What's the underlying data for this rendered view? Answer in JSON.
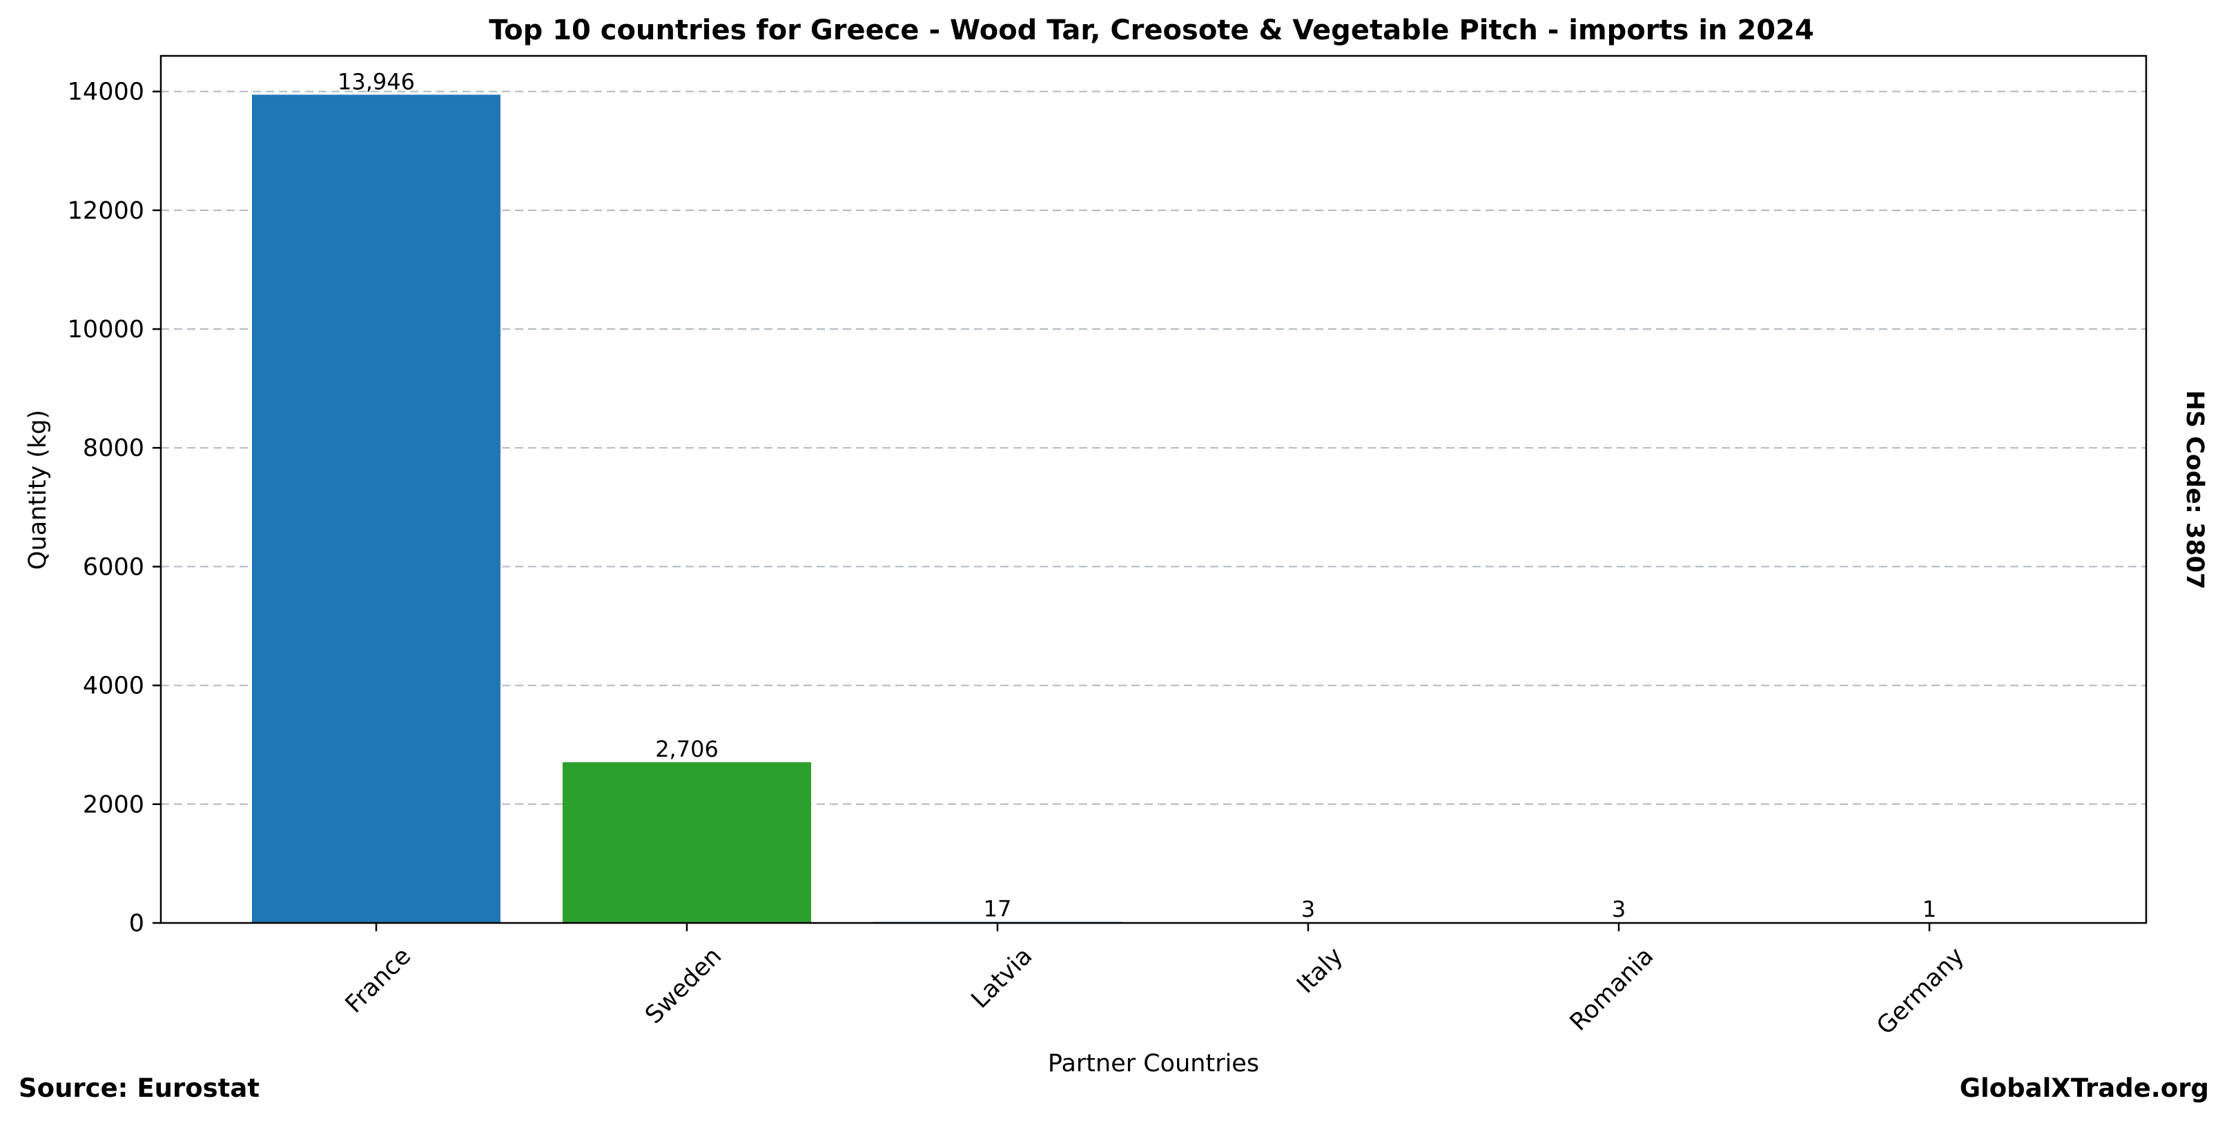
{
  "chart_data": {
    "type": "bar",
    "title": "Top 10 countries for Greece - Wood Tar, Creosote & Vegetable Pitch - imports in 2024",
    "xlabel": "Partner Countries",
    "ylabel": "Quantity (kg)",
    "categories": [
      "France",
      "Sweden",
      "Latvia",
      "Italy",
      "Romania",
      "Germany"
    ],
    "values": [
      13946,
      2706,
      17,
      3,
      3,
      1
    ],
    "data_labels": [
      "13,946",
      "2,706",
      "17",
      "3",
      "3",
      "1"
    ],
    "colors": [
      "#1f77b4",
      "#2ca02c",
      "#1f77b4",
      "#1f77b4",
      "#1f77b4",
      "#1f77b4"
    ],
    "ylim": [
      0,
      14600
    ],
    "yticks": [
      0,
      2000,
      4000,
      6000,
      8000,
      10000,
      12000,
      14000
    ],
    "grid": "y-dashed",
    "side_label": "HS Code: 3807"
  },
  "footer": {
    "source": "Source: Eurostat",
    "brand": "GlobalXTrade.org"
  }
}
